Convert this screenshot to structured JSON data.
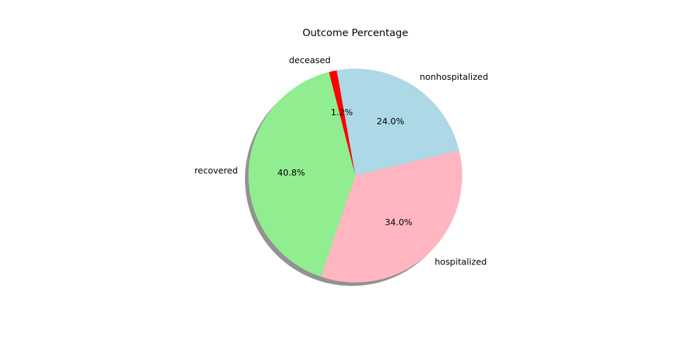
{
  "chart_data": {
    "type": "pie",
    "title": "Outcome Percentage",
    "start_angle_deg": 100,
    "direction": "counterclockwise",
    "shadow": true,
    "slices": [
      {
        "label": "deceased",
        "value": 1.2,
        "pct_label": "1.2%",
        "color": "#ff0000"
      },
      {
        "label": "recovered",
        "value": 40.8,
        "pct_label": "40.8%",
        "color": "#90ee90"
      },
      {
        "label": "hospitalized",
        "value": 34.0,
        "pct_label": "34.0%",
        "color": "#ffb6c1"
      },
      {
        "label": "nonhospitalized",
        "value": 24.0,
        "pct_label": "24.0%",
        "color": "#add8e6"
      }
    ]
  }
}
